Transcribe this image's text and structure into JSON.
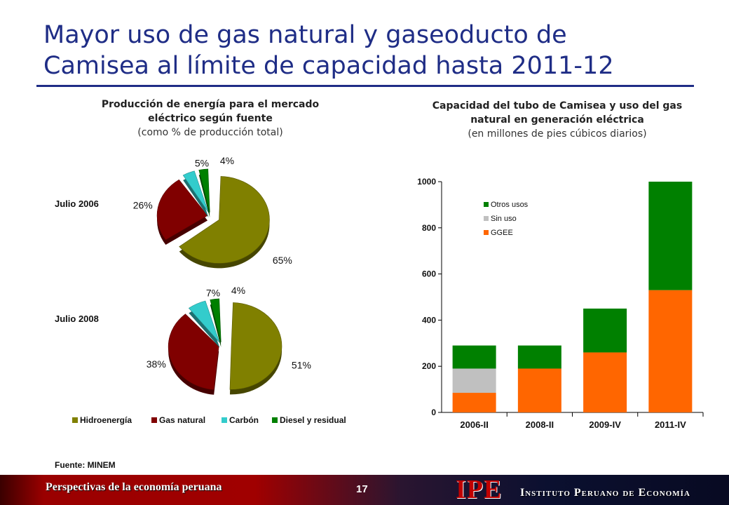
{
  "slide": {
    "title_line1": "Mayor uso de gas natural y gaseoducto de",
    "title_line2": "Camisea al límite de capacidad hasta 2011-12",
    "source": "Fuente: MINEM"
  },
  "footer": {
    "left_text": "Perspectivas de la economía peruana",
    "page_number": "17",
    "logo": "IPE",
    "institute": "Instituto Peruano de Economía"
  },
  "colors": {
    "title": "#1f2d86",
    "hidro": "#808000",
    "gas": "#800000",
    "carbon": "#33cccc",
    "diesel": "#008000",
    "ggee": "#ff6600",
    "sin_uso": "#c0c0c0",
    "otros": "#008000"
  },
  "chart_data": [
    {
      "type": "pie",
      "title": "Producción de energía para el mercado eléctrico según fuente",
      "subtitle": "(como % de producción total)",
      "legend": [
        "Hidroenergía",
        "Gas natural",
        "Carbón",
        "Diesel y residual"
      ],
      "legend_placement": "bottom",
      "pies": [
        {
          "label": "Julio 2006",
          "slices": [
            {
              "name": "Hidroenergía",
              "value": 65,
              "label": "65%"
            },
            {
              "name": "Gas natural",
              "value": 26,
              "label": "26%"
            },
            {
              "name": "Carbón",
              "value": 5,
              "label": "5%"
            },
            {
              "name": "Diesel y residual",
              "value": 4,
              "label": "4%"
            }
          ]
        },
        {
          "label": "Julio 2008",
          "slices": [
            {
              "name": "Hidroenergía",
              "value": 51,
              "label": "51%"
            },
            {
              "name": "Gas natural",
              "value": 38,
              "label": "38%"
            },
            {
              "name": "Carbón",
              "value": 7,
              "label": "7%"
            },
            {
              "name": "Diesel y residual",
              "value": 4,
              "label": "4%"
            }
          ]
        }
      ]
    },
    {
      "type": "bar",
      "stacked": true,
      "title": "Capacidad del tubo de Camisea y uso del gas natural en generación eléctrica",
      "subtitle": "(en millones de pies cúbicos diarios)",
      "categories": [
        "2006-II",
        "2008-II",
        "2009-IV",
        "2011-IV"
      ],
      "series": [
        {
          "name": "GGEE",
          "values": [
            85,
            190,
            260,
            530
          ]
        },
        {
          "name": "Sin uso",
          "values": [
            105,
            0,
            0,
            0
          ]
        },
        {
          "name": "Otros usos",
          "values": [
            100,
            100,
            190,
            470
          ]
        }
      ],
      "ylim": [
        0,
        1000
      ],
      "yticks": [
        0,
        200,
        400,
        600,
        800,
        1000
      ],
      "legend_placement": "top-left",
      "grid": false
    }
  ]
}
